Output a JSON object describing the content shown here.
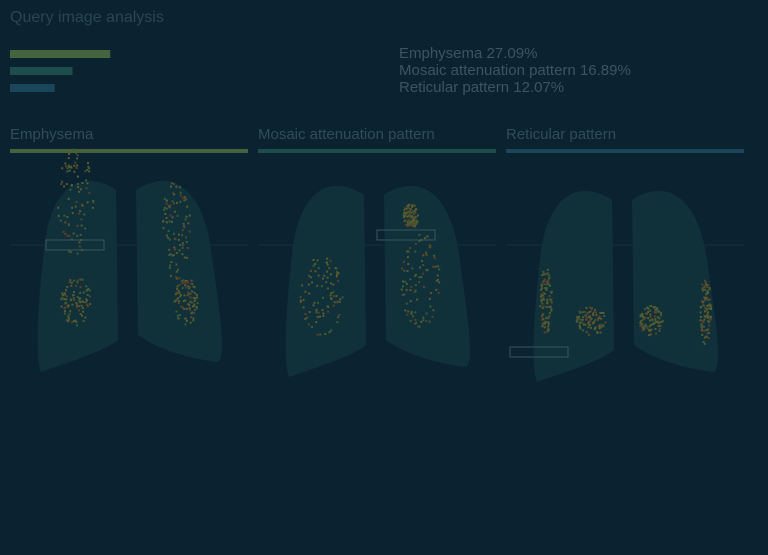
{
  "header": {
    "title": "Query image analysis"
  },
  "summary": {
    "items": [
      {
        "label": "Emphysema 27.09%",
        "value": 27.09,
        "color": "#45633c"
      },
      {
        "label": "Mosaic attenuation pattern 16.89%",
        "value": 16.89,
        "color": "#1d4d4d"
      },
      {
        "label": "Reticular pattern 12.07%",
        "value": 12.07,
        "color": "#1b4558"
      }
    ]
  },
  "panels": [
    {
      "title": "Emphysema",
      "color": "#45633c"
    },
    {
      "title": "Mosaic attenuation pattern",
      "color": "#1d4d4d"
    },
    {
      "title": "Reticular pattern",
      "color": "#1b4558"
    }
  ]
}
